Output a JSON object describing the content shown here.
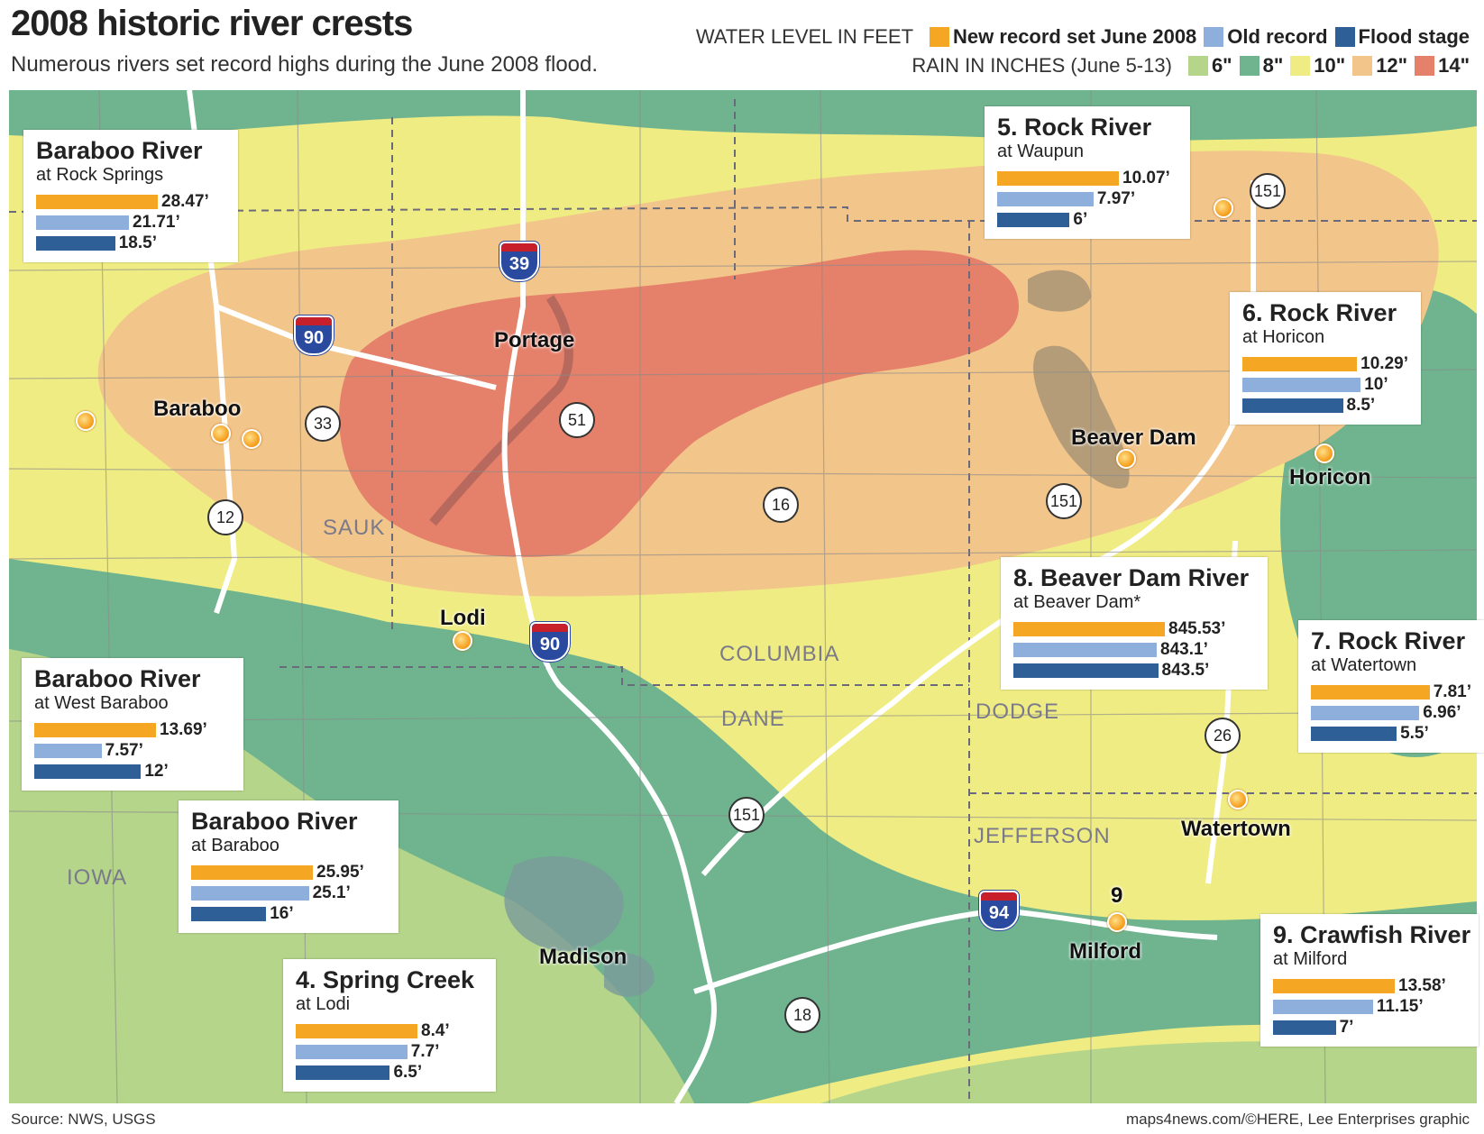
{
  "title": "2008 historic river crests",
  "subtitle": "Numerous rivers set record highs during the June 2008 flood.",
  "legend": {
    "water_label": "WATER LEVEL IN FEET",
    "new_record": "New record set June 2008",
    "old_record": "Old record",
    "flood_stage": "Flood stage",
    "rain_label": "RAIN IN INCHES (June 5-13)",
    "rain_levels": [
      "6\"",
      "8\"",
      "10\"",
      "12\"",
      "14\""
    ]
  },
  "colors": {
    "new_record": "#f5a623",
    "old_record": "#8eaedb",
    "flood_stage": "#2e5f96",
    "rain_6": "#b5d58a",
    "rain_8": "#6fb48f",
    "rain_10": "#f0ec84",
    "rain_12": "#f2c58a",
    "rain_14": "#e5806a"
  },
  "places": {
    "portage": "Portage",
    "baraboo": "Baraboo",
    "beaver_dam": "Beaver Dam",
    "horicon": "Horicon",
    "lodi": "Lodi",
    "watertown": "Watertown",
    "madison": "Madison",
    "milford": "Milford",
    "milford_num": "9"
  },
  "counties": {
    "sauk": "SAUK",
    "columbia": "COLUMBIA",
    "dane": "DANE",
    "dodge": "DODGE",
    "jefferson": "JEFFERSON",
    "iowa": "IOWA"
  },
  "highways": {
    "i39": "39",
    "i90a": "90",
    "i90b": "90",
    "i94": "94",
    "h33": "33",
    "h51": "51",
    "h12": "12",
    "h16": "16",
    "h151a": "151",
    "h151b": "151",
    "h151c": "151",
    "h26": "26",
    "h18": "18"
  },
  "gauges": [
    {
      "id": "rock-springs",
      "title": "Baraboo River",
      "sub": "at Rock Springs",
      "new": 28.47,
      "old": 21.71,
      "flood": 18.5,
      "new_label": "28.47’",
      "old_label": "21.71’",
      "flood_label": "18.5’"
    },
    {
      "id": "waupun",
      "title": "5. Rock River",
      "sub": "at Waupun",
      "new": 10.07,
      "old": 7.97,
      "flood": 6,
      "new_label": "10.07’",
      "old_label": "7.97’",
      "flood_label": "6’"
    },
    {
      "id": "horicon",
      "title": "6. Rock River",
      "sub": "at Horicon",
      "new": 10.29,
      "old": 10,
      "flood": 8.5,
      "new_label": "10.29’",
      "old_label": "10’",
      "flood_label": "8.5’"
    },
    {
      "id": "west-baraboo",
      "title": "Baraboo River",
      "sub": "at West Baraboo",
      "new": 13.69,
      "old": 7.57,
      "flood": 12,
      "new_label": "13.69’",
      "old_label": "7.57’",
      "flood_label": "12’"
    },
    {
      "id": "beaver-dam",
      "title": "8. Beaver Dam River",
      "sub": "at Beaver Dam*",
      "new": 845.53,
      "old": 843.1,
      "flood": 843.5,
      "new_label": "845.53’",
      "old_label": "843.1’",
      "flood_label": "843.5’"
    },
    {
      "id": "watertown",
      "title": "7. Rock River",
      "sub": "at Watertown",
      "new": 7.81,
      "old": 6.96,
      "flood": 5.5,
      "new_label": "7.81’",
      "old_label": "6.96’",
      "flood_label": "5.5’"
    },
    {
      "id": "baraboo",
      "title": "Baraboo River",
      "sub": "at Baraboo",
      "new": 25.95,
      "old": 25.1,
      "flood": 16,
      "new_label": "25.95’",
      "old_label": "25.1’",
      "flood_label": "16’"
    },
    {
      "id": "lodi",
      "title": "4. Spring Creek",
      "sub": "at Lodi",
      "new": 8.4,
      "old": 7.7,
      "flood": 6.5,
      "new_label": "8.4’",
      "old_label": "7.7’",
      "flood_label": "6.5’"
    },
    {
      "id": "milford",
      "title": "9. Crawfish River",
      "sub": "at Milford",
      "new": 13.58,
      "old": 11.15,
      "flood": 7,
      "new_label": "13.58’",
      "old_label": "11.15’",
      "flood_label": "7’"
    }
  ],
  "source": "Source: NWS, USGS",
  "credit": "maps4news.com/©HERE, Lee Enterprises graphic"
}
